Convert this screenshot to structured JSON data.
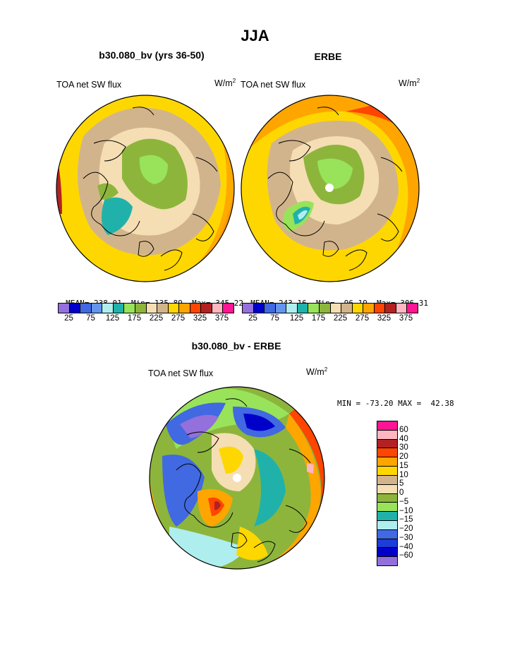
{
  "page_title": "JJA",
  "panels": [
    {
      "id": "model",
      "case_title": "b30.080_bv (yrs 36-50)",
      "left_label": "TOA net SW flux",
      "units_base": "W/m",
      "units_exp": "2",
      "stats": {
        "mean_label": "MEAN=",
        "mean": "238.01",
        "min_label": "Min=",
        "min": "135.89",
        "max_label": "Max=",
        "max": "345.22"
      }
    },
    {
      "id": "obs",
      "case_title": "ERBE",
      "left_label": "TOA net SW flux",
      "units_base": "W/m",
      "units_exp": "2",
      "stats": {
        "mean_label": "MEAN=",
        "mean": "243.16",
        "min_label": "Min=",
        "min": "96.19",
        "max_label": "Max=",
        "max": "306.31"
      }
    }
  ],
  "diff": {
    "case_title": "b30.080_bv - ERBE",
    "left_label": "TOA net SW flux",
    "units_base": "W/m",
    "units_exp": "2",
    "minmax": "MIN = -73.20 MAX =  42.38"
  },
  "colorbar_top": {
    "colors": [
      "#9370db",
      "#0000c8",
      "#4169e1",
      "#6495ed",
      "#afeeee",
      "#20b2aa",
      "#98e35a",
      "#8db53c",
      "#f5deb3",
      "#d2b48c",
      "#ffd700",
      "#ffa500",
      "#ff4500",
      "#b22222",
      "#ffb6c1",
      "#ff1493"
    ],
    "tick_labels": [
      "25",
      "75",
      "125",
      "175",
      "225",
      "275",
      "325",
      "375"
    ]
  },
  "colorbar_diff": {
    "colors": [
      "#ff1493",
      "#ffb6c1",
      "#b22222",
      "#ff4500",
      "#ffa500",
      "#ffd700",
      "#d2b48c",
      "#f5deb3",
      "#8db53c",
      "#98e35a",
      "#20b2aa",
      "#afeeee",
      "#4169e1",
      "#1e3cd8",
      "#0000c8",
      "#9370db"
    ],
    "tick_labels": [
      "60",
      "40",
      "30",
      "20",
      "15",
      "10",
      "5",
      "0",
      "−5",
      "−10",
      "−15",
      "−20",
      "−30",
      "−40",
      "−60"
    ]
  }
}
